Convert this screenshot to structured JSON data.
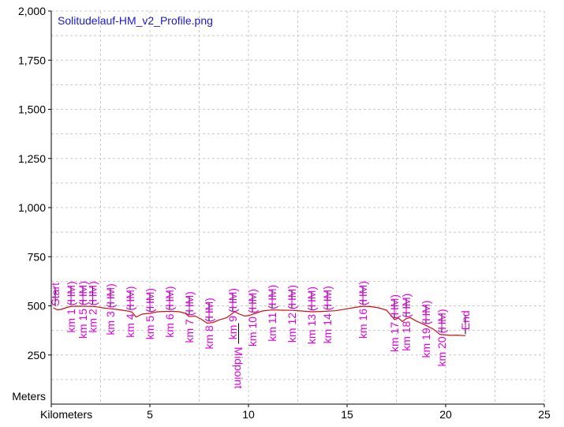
{
  "chart_data": {
    "type": "line",
    "title": "Solitudelauf-HM_v2_Profile.png",
    "xlabel": "Kilometers",
    "ylabel": "Meters",
    "xlim": [
      0,
      25
    ],
    "ylim": [
      0,
      2000
    ],
    "x_ticks": [
      0,
      5,
      10,
      15,
      20,
      25
    ],
    "x_tick_labels": [
      "",
      "5",
      "10",
      "15",
      "20",
      "25"
    ],
    "y_ticks": [
      250,
      500,
      750,
      1000,
      1250,
      1500,
      1750,
      2000
    ],
    "y_tick_labels": [
      "250",
      "500",
      "750",
      "1,000",
      "1,250",
      "1,500",
      "1,750",
      "2,000"
    ],
    "x_minor_step": 2.5,
    "y_minor_step": 125,
    "grid": true,
    "colors": {
      "line": "#cc1111",
      "title": "#1a1ad9",
      "markers": "#e000e0",
      "grid": "#c8c8c8",
      "axis": "#000000"
    },
    "series": [
      {
        "x": [
          0.1,
          0.3,
          0.5,
          0.8,
          1.0,
          1.3,
          1.6,
          2.0,
          2.3,
          2.6,
          3.0,
          3.3,
          3.6,
          3.9,
          4.1,
          4.3,
          4.6,
          5.0,
          5.4,
          5.8,
          6.2,
          6.5,
          6.8,
          7.0,
          7.3,
          7.6,
          7.9,
          8.2,
          8.5,
          8.9,
          9.1,
          9.3,
          9.5,
          9.8,
          10.0,
          10.3,
          10.7,
          11.2,
          11.7,
          12.2,
          12.7,
          13.2,
          13.8,
          14.4,
          14.9,
          15.4,
          15.8,
          16.2,
          16.6,
          17.0,
          17.2,
          17.4,
          17.6,
          17.8,
          18.0,
          18.2,
          18.5,
          18.8,
          19.1,
          19.4,
          19.7,
          20.0,
          20.3,
          20.6,
          21.0
        ],
        "y": [
          490,
          480,
          482,
          492,
          497,
          498,
          498,
          497,
          495,
          490,
          485,
          482,
          478,
          473,
          468,
          443,
          458,
          462,
          470,
          472,
          472,
          470,
          462,
          445,
          448,
          432,
          412,
          415,
          428,
          440,
          455,
          470,
          460,
          448,
          450,
          460,
          474,
          479,
          478,
          477,
          474,
          470,
          472,
          475,
          483,
          492,
          498,
          496,
          490,
          478,
          455,
          430,
          438,
          420,
          435,
          440,
          423,
          410,
          395,
          380,
          355,
          352,
          350,
          351,
          348
        ]
      }
    ],
    "markers": [
      {
        "label": "Start",
        "x": 0.2,
        "y": 490
      },
      {
        "label": "km 1 (HM)",
        "x": 1.0,
        "y": 497
      },
      {
        "label": "km 15 (HM)",
        "x": 1.6,
        "y": 498
      },
      {
        "label": "km 2 (HM)",
        "x": 2.1,
        "y": 497
      },
      {
        "label": "km 3 (HM)",
        "x": 3.0,
        "y": 485
      },
      {
        "label": "km 4 (HM)",
        "x": 4.0,
        "y": 472
      },
      {
        "label": "km 5 (HM)",
        "x": 5.0,
        "y": 462
      },
      {
        "label": "km 6 (HM)",
        "x": 6.0,
        "y": 472
      },
      {
        "label": "km 7 (HM)",
        "x": 7.0,
        "y": 445
      },
      {
        "label": "km 8 (HM)",
        "x": 8.0,
        "y": 413
      },
      {
        "label": "km 9 (HM)",
        "x": 9.2,
        "y": 462
      },
      {
        "label": "Midpoint",
        "x": 9.5,
        "y": 460
      },
      {
        "label": "km 10 (HM)",
        "x": 10.2,
        "y": 458
      },
      {
        "label": "km 11 (HM)",
        "x": 11.2,
        "y": 479
      },
      {
        "label": "km 12 (HM)",
        "x": 12.2,
        "y": 478
      },
      {
        "label": "km 13 (HM)",
        "x": 13.2,
        "y": 470
      },
      {
        "label": "km 14 (HM)",
        "x": 14.0,
        "y": 473
      },
      {
        "label": "km 16 (HM)",
        "x": 15.8,
        "y": 498
      },
      {
        "label": "km 17 (HM)",
        "x": 17.4,
        "y": 430
      },
      {
        "label": "km 18 (HM)",
        "x": 18.0,
        "y": 435
      },
      {
        "label": "km 19 (HM)",
        "x": 19.0,
        "y": 400
      },
      {
        "label": "km 20 (HM)",
        "x": 19.8,
        "y": 356
      },
      {
        "label": "End",
        "x": 21.0,
        "y": 348
      }
    ]
  }
}
